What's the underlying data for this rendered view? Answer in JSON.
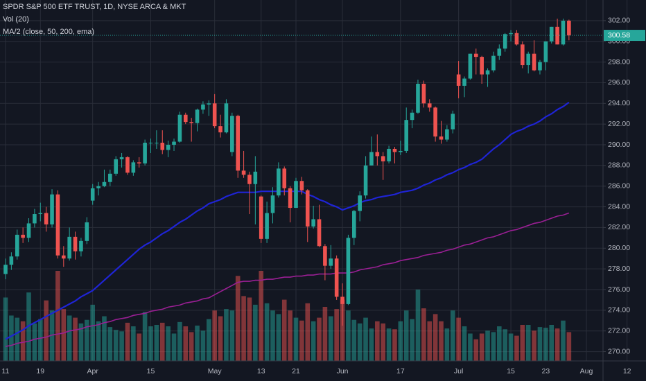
{
  "chart_data": {
    "type": "candlestick",
    "title": "SPDR S&P 500 ETF TRUST, 1D, NYSE ARCA & MKT",
    "indicators": [
      "Vol (20)",
      "MA/2 (close, 50, 200, ema)"
    ],
    "categories": [
      "11",
      null,
      null,
      null,
      null,
      null,
      "19",
      null,
      null,
      null,
      null,
      null,
      null,
      null,
      null,
      "Apr",
      null,
      null,
      null,
      null,
      null,
      null,
      null,
      null,
      null,
      "15",
      null,
      null,
      null,
      null,
      null,
      null,
      null,
      null,
      null,
      null,
      "May",
      null,
      null,
      null,
      null,
      null,
      null,
      null,
      "13",
      null,
      null,
      null,
      null,
      null,
      "21",
      null,
      null,
      null,
      null,
      null,
      null,
      null,
      "Jun",
      null,
      null,
      null,
      null,
      null,
      null,
      null,
      null,
      null,
      "17",
      null,
      null,
      null,
      null,
      null,
      null,
      null,
      null,
      null,
      "Jul",
      null,
      null,
      null,
      null,
      null,
      null,
      null,
      null,
      "15",
      null,
      null,
      null,
      null,
      null,
      "23",
      null,
      null,
      null,
      null,
      null,
      null,
      "Aug",
      null,
      null,
      null,
      null,
      null,
      null,
      "12"
    ],
    "open": [
      277.5,
      278.4,
      279.2,
      281.3,
      281.0,
      282.4,
      283.3,
      283.4,
      282.3,
      285.2,
      279.3,
      279.0,
      281.1,
      279.7,
      280.7,
      284.6,
      285.8,
      286.0,
      286.4,
      287.2,
      288.6,
      288.8,
      287.3,
      288.3,
      288.2,
      290.2,
      290.2,
      290.2,
      289.5,
      290.0,
      290.3,
      292.9,
      292.2,
      292.1,
      293.4,
      293.9,
      294.0,
      291.8,
      291.2,
      289.3,
      292.8,
      287.5,
      287.1,
      286.2,
      285.0,
      280.9,
      283.4,
      285.1,
      287.7,
      285.8,
      283.9,
      286.5,
      285.6,
      282.1,
      282.8,
      280.2,
      278.3,
      279.0,
      275.3,
      274.6,
      281.0,
      283.6,
      285.1,
      288.0,
      289.3,
      288.9,
      288.4,
      289.6,
      289.3,
      289.4,
      292.4,
      293.1,
      295.9,
      294.0,
      293.6,
      290.8,
      290.5,
      291.5,
      296.8,
      295.7,
      296.4,
      298.8,
      298.5,
      296.8,
      297.2,
      298.6,
      299.3,
      300.7,
      300.8,
      299.7,
      297.7,
      298.8,
      297.2,
      298.0,
      300.0,
      301.4,
      299.7,
      302.0,
      null,
      null,
      null,
      null,
      null,
      null,
      null,
      null,
      null,
      null
    ],
    "high": [
      279.0,
      279.6,
      281.8,
      282.0,
      282.9,
      283.8,
      284.4,
      284.0,
      285.7,
      285.6,
      280.2,
      282.0,
      281.6,
      281.0,
      283.0,
      286.2,
      286.4,
      287.6,
      287.6,
      288.9,
      289.2,
      288.9,
      288.5,
      288.8,
      290.5,
      290.6,
      291.4,
      291.4,
      290.4,
      290.6,
      293.2,
      293.1,
      292.6,
      293.5,
      294.2,
      294.3,
      294.9,
      292.9,
      294.4,
      293.1,
      292.9,
      289.4,
      287.4,
      288.9,
      285.1,
      284.5,
      285.9,
      288.3,
      287.9,
      286.0,
      286.8,
      286.9,
      285.7,
      284.1,
      284.2,
      280.4,
      280.3,
      279.3,
      276.6,
      281.3,
      283.7,
      285.5,
      288.9,
      290.8,
      291.0,
      289.3,
      289.9,
      289.8,
      290.4,
      293.6,
      293.4,
      296.3,
      296.2,
      294.4,
      293.7,
      292.3,
      291.9,
      293.3,
      298.1,
      296.6,
      298.8,
      299.3,
      298.6,
      297.4,
      299.0,
      299.7,
      300.8,
      301.1,
      301.1,
      300.0,
      299.0,
      300.1,
      298.2,
      300.0,
      301.4,
      302.2,
      302.2,
      302.1,
      null,
      null,
      null,
      null,
      null,
      null,
      null,
      null,
      null,
      null
    ],
    "low": [
      277.0,
      277.9,
      278.9,
      280.5,
      280.6,
      282.0,
      282.6,
      281.6,
      282.0,
      279.0,
      278.2,
      278.8,
      278.9,
      279.2,
      280.4,
      284.2,
      285.1,
      285.9,
      286.0,
      287.0,
      287.8,
      287.1,
      287.0,
      287.8,
      288.0,
      289.2,
      289.6,
      289.1,
      288.8,
      289.4,
      290.2,
      292.0,
      290.3,
      291.3,
      293.0,
      292.8,
      291.6,
      290.7,
      291.1,
      288.9,
      286.8,
      286.8,
      283.3,
      282.3,
      280.5,
      280.5,
      282.4,
      284.9,
      285.1,
      282.5,
      283.9,
      285.2,
      280.6,
      281.9,
      280.1,
      276.9,
      278.0,
      275.0,
      272.5,
      274.5,
      280.3,
      282.6,
      284.8,
      288.0,
      288.0,
      286.6,
      288.2,
      288.2,
      289.0,
      289.2,
      291.6,
      293.0,
      293.6,
      293.2,
      290.3,
      290.1,
      290.3,
      291.1,
      294.5,
      294.6,
      296.3,
      296.8,
      295.9,
      295.6,
      297.0,
      298.2,
      299.0,
      300.0,
      299.6,
      297.4,
      296.9,
      297.1,
      296.8,
      297.2,
      299.8,
      299.7,
      299.6,
      300.1,
      null,
      null,
      null,
      null,
      null,
      null,
      null,
      null,
      null,
      null
    ],
    "close": [
      278.4,
      279.2,
      281.3,
      281.0,
      282.4,
      283.3,
      283.4,
      282.3,
      285.2,
      279.3,
      279.0,
      281.1,
      279.7,
      280.7,
      282.5,
      285.8,
      286.0,
      286.4,
      287.2,
      288.6,
      288.8,
      287.3,
      288.3,
      288.2,
      290.2,
      290.2,
      290.2,
      289.5,
      290.0,
      290.3,
      292.9,
      292.2,
      292.1,
      293.4,
      293.9,
      294.0,
      291.8,
      291.2,
      294.0,
      292.8,
      287.5,
      287.1,
      286.2,
      287.4,
      280.9,
      283.4,
      285.1,
      287.7,
      285.8,
      283.9,
      286.5,
      285.6,
      282.1,
      282.8,
      280.2,
      278.3,
      279.0,
      275.3,
      274.6,
      281.0,
      283.6,
      285.1,
      288.0,
      289.3,
      288.9,
      288.4,
      289.6,
      289.3,
      289.4,
      292.4,
      293.1,
      295.9,
      294.0,
      293.6,
      290.8,
      290.5,
      291.5,
      293.0,
      295.7,
      296.4,
      298.8,
      298.5,
      296.8,
      297.2,
      298.6,
      299.3,
      300.7,
      300.8,
      299.7,
      297.7,
      298.8,
      297.2,
      298.0,
      300.0,
      301.4,
      299.7,
      302.0,
      300.58,
      null,
      null,
      null,
      null,
      null,
      null,
      null,
      null,
      null,
      null
    ],
    "volume": [
      88,
      63,
      60,
      55,
      95,
      52,
      58,
      84,
      70,
      125,
      72,
      63,
      60,
      52,
      57,
      78,
      55,
      62,
      47,
      43,
      41,
      53,
      48,
      38,
      68,
      48,
      50,
      53,
      48,
      38,
      54,
      48,
      40,
      49,
      42,
      58,
      70,
      62,
      72,
      70,
      118,
      90,
      88,
      78,
      125,
      80,
      70,
      65,
      85,
      70,
      60,
      56,
      80,
      55,
      60,
      75,
      62,
      72,
      85,
      70,
      57,
      52,
      60,
      45,
      55,
      52,
      45,
      44,
      55,
      70,
      58,
      99,
      73,
      55,
      65,
      55,
      45,
      70,
      60,
      48,
      38,
      30,
      38,
      42,
      40,
      48,
      44,
      38,
      35,
      50,
      50,
      42,
      47,
      46,
      50,
      45,
      56,
      40,
      null,
      null,
      null,
      null,
      null,
      null,
      null,
      null,
      null,
      null
    ],
    "moving_averages": [
      {
        "color": "#1f24d6",
        "values": [
          271.2,
          271.5,
          271.8,
          272.1,
          272.5,
          272.8,
          273.1,
          273.4,
          273.7,
          274.0,
          274.3,
          274.6,
          274.9,
          275.3,
          275.6,
          275.9,
          276.4,
          276.9,
          277.4,
          277.9,
          278.4,
          278.9,
          279.4,
          279.9,
          280.3,
          280.6,
          281.0,
          281.4,
          281.7,
          282.1,
          282.5,
          282.8,
          283.2,
          283.6,
          283.9,
          284.3,
          284.5,
          284.7,
          285.0,
          285.2,
          285.4,
          285.4,
          285.4,
          285.4,
          285.5,
          285.5,
          285.5,
          285.5,
          285.5,
          285.5,
          285.5,
          285.5,
          285.2,
          285.0,
          284.7,
          284.5,
          284.2,
          284.0,
          283.7,
          283.9,
          284.1,
          284.4,
          284.6,
          284.7,
          284.9,
          285.0,
          285.1,
          285.2,
          285.4,
          285.5,
          285.6,
          285.8,
          286.1,
          286.3,
          286.6,
          286.8,
          287.1,
          287.3,
          287.6,
          287.8,
          288.1,
          288.3,
          288.6,
          289.1,
          289.6,
          290.0,
          290.5,
          291.0,
          291.3,
          291.5,
          291.8,
          292.0,
          292.3,
          292.7,
          293.0,
          293.4,
          293.7,
          294.1,
          null,
          null,
          null,
          null,
          null,
          null,
          null,
          null,
          null,
          null
        ]
      },
      {
        "color": "#9a1f94",
        "values": [
          270.5,
          270.6,
          270.8,
          270.9,
          271.0,
          271.2,
          271.3,
          271.4,
          271.6,
          271.7,
          271.8,
          272.0,
          272.1,
          272.2,
          272.4,
          272.5,
          272.6,
          272.8,
          272.9,
          273.1,
          273.2,
          273.3,
          273.5,
          273.6,
          273.7,
          273.9,
          274.0,
          274.1,
          274.3,
          274.4,
          274.5,
          274.7,
          274.8,
          274.9,
          275.1,
          275.2,
          275.5,
          275.8,
          276.1,
          276.4,
          276.7,
          276.8,
          276.8,
          276.9,
          276.9,
          277.0,
          277.0,
          277.1,
          277.2,
          277.2,
          277.3,
          277.3,
          277.4,
          277.4,
          277.5,
          277.5,
          277.5,
          277.6,
          277.6,
          277.6,
          277.7,
          277.9,
          278.0,
          278.1,
          278.2,
          278.4,
          278.5,
          278.6,
          278.8,
          278.9,
          279.0,
          279.1,
          279.3,
          279.4,
          279.5,
          279.6,
          279.8,
          279.9,
          280.1,
          280.3,
          280.4,
          280.6,
          280.8,
          281.0,
          281.1,
          281.3,
          281.5,
          281.7,
          281.8,
          282.0,
          282.2,
          282.4,
          282.5,
          282.7,
          282.9,
          283.1,
          283.2,
          283.4,
          null,
          null,
          null,
          null,
          null,
          null,
          null,
          null,
          null,
          null
        ]
      }
    ],
    "up_color": "#26a69a",
    "down_color": "#ef5350",
    "ylim": [
      269.1,
      304.0
    ],
    "yticks": [
      {
        "value": 270,
        "label": "270.00"
      },
      {
        "value": 272,
        "label": "272.00"
      },
      {
        "value": 274,
        "label": "274.00"
      },
      {
        "value": 276,
        "label": "276.00"
      },
      {
        "value": 278,
        "label": "278.00"
      },
      {
        "value": 280,
        "label": "280.00"
      },
      {
        "value": 282,
        "label": "282.00"
      },
      {
        "value": 284,
        "label": "284.00"
      },
      {
        "value": 286,
        "label": "286.00"
      },
      {
        "value": 288,
        "label": "288.00"
      },
      {
        "value": 290,
        "label": "290.00"
      },
      {
        "value": 292,
        "label": "292.00"
      },
      {
        "value": 294,
        "label": "294.00"
      },
      {
        "value": 296,
        "label": "296.00"
      },
      {
        "value": 298,
        "label": "298.00"
      },
      {
        "value": 300,
        "label": "300.00"
      },
      {
        "value": 302,
        "label": "302.00"
      }
    ],
    "grid": true
  }
}
